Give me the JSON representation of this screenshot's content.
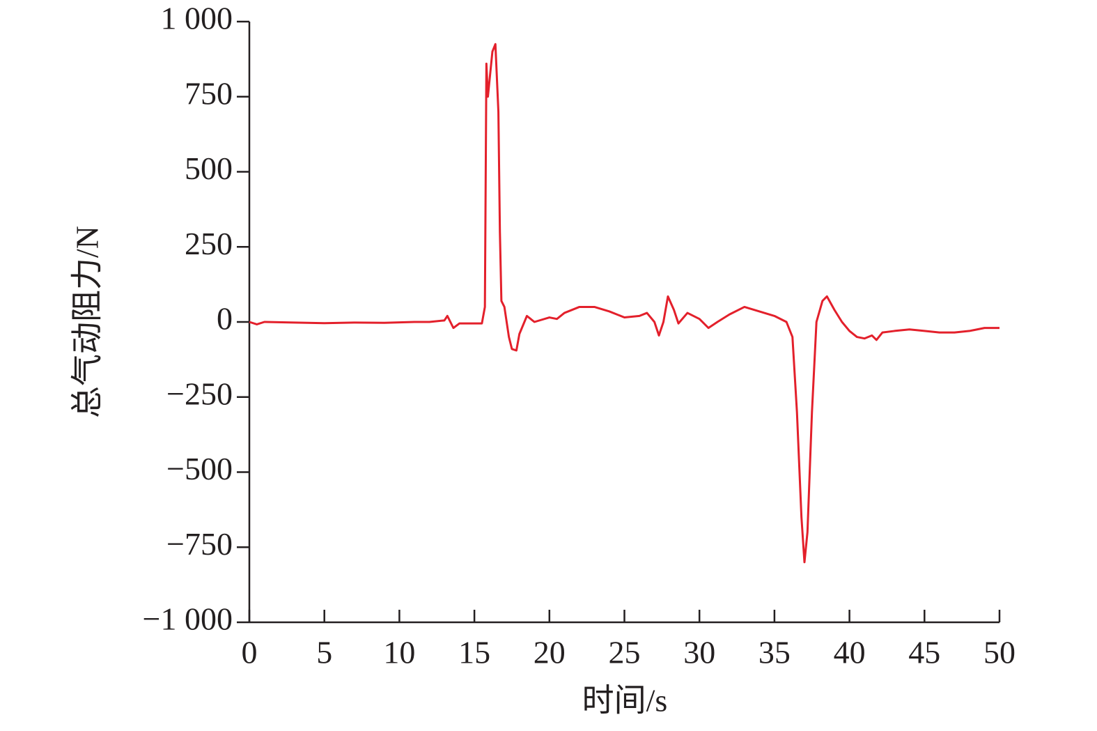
{
  "chart_data": {
    "type": "line",
    "x_label": "时间/s",
    "y_label": "总气动阻力/N",
    "color": "#e3202b",
    "x": [
      0,
      0.5,
      1,
      3,
      5,
      7,
      9,
      11,
      12,
      13,
      13.2,
      13.4,
      13.6,
      14,
      15,
      15.5,
      15.7,
      15.8,
      15.9,
      16.0,
      16.2,
      16.4,
      16.6,
      16.7,
      16.8,
      17.0,
      17.3,
      17.5,
      17.8,
      18.0,
      18.5,
      19,
      20,
      20.5,
      21,
      22,
      23,
      24,
      25,
      26,
      26.5,
      27,
      27.3,
      27.6,
      27.9,
      28.3,
      28.6,
      29.2,
      30.0,
      30.6,
      31.2,
      32,
      33,
      34,
      35,
      35.8,
      36.2,
      36.5,
      36.8,
      37.0,
      37.2,
      37.5,
      37.8,
      38.2,
      38.5,
      39,
      39.5,
      40,
      40.5,
      41,
      41.5,
      41.8,
      42.2,
      43,
      44,
      45,
      46,
      47,
      48,
      49,
      50
    ],
    "values": [
      0,
      -8,
      0,
      -2,
      -4,
      -2,
      -3,
      0,
      0,
      5,
      20,
      0,
      -20,
      -5,
      -5,
      -5,
      50,
      860,
      750,
      800,
      900,
      925,
      700,
      300,
      70,
      50,
      -50,
      -90,
      -95,
      -40,
      20,
      0,
      15,
      10,
      30,
      50,
      50,
      35,
      15,
      20,
      30,
      0,
      -45,
      0,
      85,
      40,
      -5,
      30,
      10,
      -20,
      0,
      25,
      50,
      35,
      20,
      0,
      -50,
      -300,
      -650,
      -800,
      -700,
      -300,
      0,
      70,
      85,
      40,
      0,
      -30,
      -50,
      -55,
      -45,
      -60,
      -35,
      -30,
      -25,
      -30,
      -35,
      -35,
      -30,
      -20,
      -20
    ],
    "xlim": [
      0,
      50
    ],
    "xticks": [
      0,
      5,
      10,
      15,
      20,
      25,
      30,
      35,
      40,
      45,
      50
    ],
    "ylim": [
      -1000,
      1000
    ],
    "yticks": [
      {
        "value": -1000,
        "label": "−1 000"
      },
      {
        "value": -750,
        "label": "−750"
      },
      {
        "value": -500,
        "label": "−500"
      },
      {
        "value": -250,
        "label": "−250"
      },
      0,
      250,
      500,
      750,
      {
        "value": 1000,
        "label": "1 000"
      }
    ]
  }
}
